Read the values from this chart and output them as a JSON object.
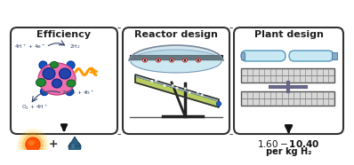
{
  "panel1_title": "Efficiency",
  "panel2_title": "Reactor design",
  "panel3_title": "Plant design",
  "cost_text": "$1.60 - $10.40",
  "cost_unit": "per kg H₂",
  "bg_color": "#ffffff",
  "light_blue": "#cce8f0",
  "reactor_green": "#b8cc60",
  "tube_color": "#c8e8f4",
  "gray_dark": "#444444",
  "gray_mid": "#888888"
}
